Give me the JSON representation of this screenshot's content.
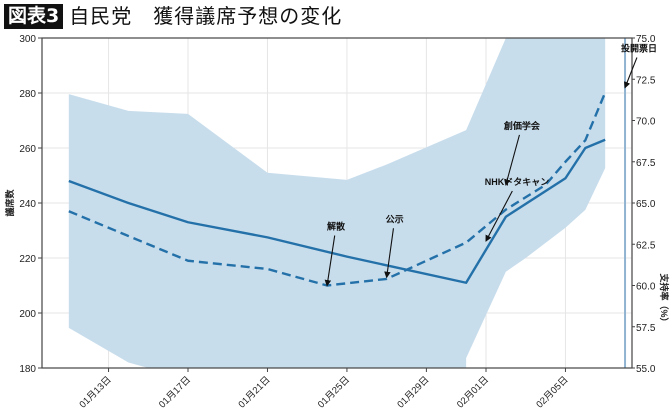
{
  "header": {
    "badge": "図表3",
    "title": "自民党　獲得議席予想の変化"
  },
  "chart_data": {
    "type": "line",
    "x_type": "date (MM-DD)",
    "ylabel_left": "議席数",
    "ylabel_right": "支持率（%）",
    "ylim_left": [
      180,
      300
    ],
    "ylim_right": [
      55.0,
      75.0
    ],
    "yticks_left": [
      180,
      200,
      220,
      240,
      260,
      280,
      300
    ],
    "yticks_right": [
      "55.0",
      "57.5",
      "60.0",
      "62.5",
      "65.0",
      "67.5",
      "70.0",
      "72.5",
      "75.0"
    ],
    "xticks": [
      {
        "date": "01-13",
        "label": "01月13日"
      },
      {
        "date": "01-17",
        "label": "01月17日"
      },
      {
        "date": "01-21",
        "label": "01月21日"
      },
      {
        "date": "01-25",
        "label": "01月25日"
      },
      {
        "date": "01-29",
        "label": "01月29日"
      },
      {
        "date": "02-01",
        "label": "02月01日"
      },
      {
        "date": "02-05",
        "label": "02月05日"
      }
    ],
    "grid": true,
    "colors": {
      "line": "#2471a9",
      "band": "#c8ddec",
      "grid": "#e6e6e6",
      "election_line": "#8fb3d0"
    },
    "series": [
      {
        "axis": "left",
        "style": "solid",
        "points": [
          [
            "01-11",
            248
          ],
          [
            "01-14",
            240
          ],
          [
            "01-17",
            233
          ],
          [
            "01-21",
            227.5
          ],
          [
            "01-25",
            220.5
          ],
          [
            "01-31",
            211
          ],
          [
            "02-02",
            235
          ],
          [
            "02-05",
            249
          ],
          [
            "02-06",
            260
          ],
          [
            "02-07",
            263
          ]
        ]
      },
      {
        "axis": "right",
        "style": "dashed",
        "points": [
          [
            "01-11",
            64.5
          ],
          [
            "01-17",
            61.5
          ],
          [
            "01-21",
            61.0
          ],
          [
            "01-24",
            60.0
          ],
          [
            "01-27",
            60.4
          ],
          [
            "01-31",
            62.6
          ],
          [
            "02-02",
            64.6
          ],
          [
            "02-04",
            66.1
          ],
          [
            "02-05",
            67.5
          ],
          [
            "02-06",
            68.8
          ],
          [
            "02-07",
            71.7
          ]
        ]
      }
    ],
    "band": {
      "axis": "left",
      "upper": [
        [
          "01-11",
          279.6
        ],
        [
          "01-14",
          273.5
        ],
        [
          "01-17",
          272.4
        ],
        [
          "01-21",
          251
        ],
        [
          "01-25",
          248.4
        ],
        [
          "01-27",
          254
        ],
        [
          "01-31",
          266.5
        ],
        [
          "02-02",
          305
        ],
        [
          "02-07",
          305
        ]
      ],
      "lower": [
        [
          "01-11",
          194.6
        ],
        [
          "01-14",
          182
        ],
        [
          "01-15",
          176
        ],
        [
          "01-21",
          176
        ],
        [
          "01-31",
          176
        ],
        [
          "01-31",
          183.6
        ],
        [
          "02-02",
          215
        ],
        [
          "02-03",
          220
        ],
        [
          "02-05",
          231
        ],
        [
          "02-06",
          237.5
        ],
        [
          "02-07",
          252.7
        ]
      ]
    },
    "election_day": "02-08",
    "annotations": [
      {
        "text": "解散",
        "target": [
          "01-24",
          60.0
        ],
        "axis": "right"
      },
      {
        "text": "公示",
        "target": [
          "01-27",
          60.5
        ],
        "axis": "right"
      },
      {
        "text": "NHKドタキャン",
        "target": [
          "02-01",
          62.7
        ],
        "axis": "right"
      },
      {
        "text": "創価学会",
        "target": [
          "02-02",
          66.1
        ],
        "axis": "right"
      },
      {
        "text": "投開票日",
        "target": [
          "02-08",
          72.0
        ],
        "axis": "right"
      }
    ]
  }
}
